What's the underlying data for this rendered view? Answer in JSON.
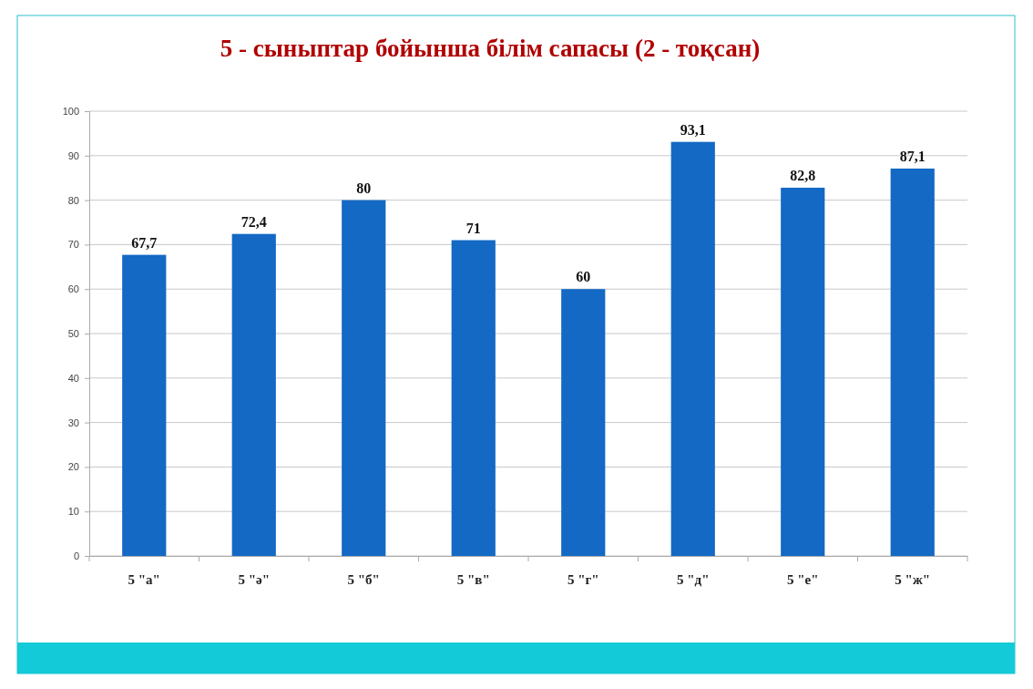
{
  "chart_data": {
    "type": "bar",
    "title": "5 - сыныптар бойынша білім сапасы (2 - тоқсан)",
    "categories": [
      "5 \"а\"",
      "5 \"ә\"",
      "5 \"б\"",
      "5 \"в\"",
      "5 \"г\"",
      "5 \"д\"",
      "5 \"е\"",
      "5 \"ж\""
    ],
    "values": [
      67.7,
      72.4,
      80,
      71,
      60,
      93.1,
      82.8,
      87.1
    ],
    "value_labels": [
      "67,7",
      "72,4",
      "80",
      "71",
      "60",
      "93,1",
      "82,8",
      "87,1"
    ],
    "color": "#1369c4",
    "ylim": [
      0,
      100
    ],
    "yticks": [
      0,
      10,
      20,
      30,
      40,
      50,
      60,
      70,
      80,
      90,
      100
    ],
    "grid": "y"
  }
}
